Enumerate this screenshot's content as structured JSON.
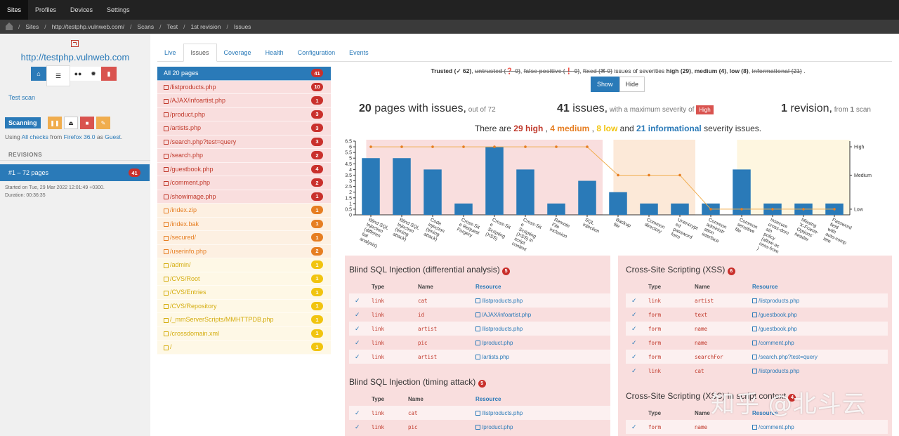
{
  "nav": [
    "Sites",
    "Profiles",
    "Devices",
    "Settings"
  ],
  "crumbs": [
    "Sites",
    "http://testphp.vulnweb.com/",
    "Scans",
    "Test",
    "1st revision",
    "Issues"
  ],
  "site": {
    "url": "http://testphp.vulnweb.com",
    "test_scan": "Test scan",
    "scanning": "Scanning",
    "using_prefix": "Using ",
    "checks": "All checks",
    "from": " from ",
    "browser": "Firefox 36.0",
    "as": " as ",
    "user": "Guest",
    "dot": "."
  },
  "revisions": {
    "heading": "REVISIONS",
    "item": "#1 – 72 pages",
    "count": "41",
    "started": "Started on Tue, 29 Mar 2022 12:01:49 +0300.",
    "duration": "Duration: 00:36:35"
  },
  "tabs": [
    "Live",
    "Issues",
    "Coverage",
    "Health",
    "Configuration",
    "Events"
  ],
  "pages": [
    {
      "label": "All 20 pages",
      "count": "41",
      "sev": "all"
    },
    {
      "label": "/listproducts.php",
      "count": "10",
      "sev": "high"
    },
    {
      "label": "/AJAX/infoartist.php",
      "count": "1",
      "sev": "high"
    },
    {
      "label": "/product.php",
      "count": "3",
      "sev": "high"
    },
    {
      "label": "/artists.php",
      "count": "3",
      "sev": "high"
    },
    {
      "label": "/search.php?test=query",
      "count": "3",
      "sev": "high"
    },
    {
      "label": "/search.php",
      "count": "2",
      "sev": "high"
    },
    {
      "label": "/guestbook.php",
      "count": "4",
      "sev": "high"
    },
    {
      "label": "/comment.php",
      "count": "2",
      "sev": "high"
    },
    {
      "label": "/showimage.php",
      "count": "1",
      "sev": "high"
    },
    {
      "label": "/index.zip",
      "count": "1",
      "sev": "med"
    },
    {
      "label": "/index.bak",
      "count": "1",
      "sev": "med"
    },
    {
      "label": "/secured/",
      "count": "1",
      "sev": "med"
    },
    {
      "label": "/userinfo.php",
      "count": "2",
      "sev": "med"
    },
    {
      "label": "/admin/",
      "count": "1",
      "sev": "low"
    },
    {
      "label": "/CVS/Root",
      "count": "1",
      "sev": "low"
    },
    {
      "label": "/CVS/Entries",
      "count": "1",
      "sev": "low"
    },
    {
      "label": "/CVS/Repository",
      "count": "1",
      "sev": "low"
    },
    {
      "label": "/_mmServerScripts/MMHTTPDB.php",
      "count": "1",
      "sev": "low"
    },
    {
      "label": "/crossdomain.xml",
      "count": "1",
      "sev": "low"
    },
    {
      "label": "/",
      "count": "1",
      "sev": "low"
    }
  ],
  "filter": {
    "trusted": "Trusted (",
    "trusted_n": " 62)",
    "untrusted": "untrusted (",
    "untrusted_n": " 0)",
    "fp": "false positive (",
    "fp_n": " 0)",
    "fixed": "fixed (",
    "fixed_n": " 0)",
    "mid": " issues of severities ",
    "high": "high (29)",
    "medium": "medium (4)",
    "low": "low (8)",
    "info": "informational (21)",
    "show": "Show",
    "hide": "Hide"
  },
  "stats": {
    "pages": "20",
    "pages_label": " pages with issues,",
    "pages_sub": " out of 72",
    "issues": "41",
    "issues_label": " issues,",
    "issues_sub": " with a maximum severity of ",
    "max": "High",
    "rev": "1",
    "rev_label": " revision,",
    "rev_sub": " from ",
    "scans": "1",
    "scan_word": " scan"
  },
  "severity_line": {
    "pre": "There are ",
    "high": "29 high",
    "medium": "4 medium",
    "low": "8 low",
    "and": " and ",
    "info": "21 informational",
    "post": " severity issues."
  },
  "chart_data": {
    "type": "bar",
    "categories": [
      "Blind SQL Injection (differential analysis)",
      "Blind SQL Injection (timing attack)",
      "Code injection (timing attack)",
      "Cross-Site Request Forgery",
      "Cross-Site Scripting (XSS)",
      "Cross-Site Scripting (XSS) in script context",
      "Remote File Inclusion",
      "SQL Injection",
      "Backup file",
      "Common directory",
      "Unencrypted password form",
      "Common administration interface",
      "Common sensitive file",
      "Insecure cross-domain policy (allow-access-from)",
      "Missing 'X-Frame-Options' header",
      "Password field with auto-complete"
    ],
    "tick_labels": [
      [
        "Blind SQL",
        "Injection",
        "(differen",
        "tial",
        "analysis)"
      ],
      [
        "Blind SQL",
        "Injection",
        "(timing",
        "attack)"
      ],
      [
        "Code",
        "injection",
        "(timing",
        "attack)"
      ],
      [
        "Cross-Sit",
        "e Request",
        "Forgery"
      ],
      [
        "Cross-Sit",
        "e",
        "Scripting",
        "(XSS)"
      ],
      [
        "Cross-Sit",
        "e",
        "Scripting",
        "(XSS) in",
        "script",
        "context"
      ],
      [
        "Remote",
        "File",
        "Inclusion"
      ],
      [
        "SQL",
        "Injection"
      ],
      [
        "Backup",
        "file"
      ],
      [
        "Common",
        "directory"
      ],
      [
        "Unencrypt",
        "ed",
        "password",
        "form"
      ],
      [
        "Common",
        "administr",
        "ation",
        "interface"
      ],
      [
        "Common",
        "sensitive",
        "file"
      ],
      [
        "Insecure",
        "cross-dom",
        "ain",
        "policy",
        "(allow-ac",
        "cess-from",
        ")"
      ],
      [
        "Missing",
        "'X-Frame-",
        "Options'",
        "header"
      ],
      [
        "Password",
        "field",
        "with",
        "auto-comp",
        "lete"
      ]
    ],
    "values": [
      5,
      5,
      4,
      1,
      6,
      4,
      1,
      3,
      2,
      1,
      1,
      1,
      4,
      1,
      1,
      1
    ],
    "severity": [
      "High",
      "High",
      "High",
      "High",
      "High",
      "High",
      "High",
      "High",
      "Medium",
      "Medium",
      "Medium",
      "Low",
      "Low",
      "Low",
      "Low",
      "Low"
    ],
    "ylim": [
      0,
      6.5
    ],
    "yticks": [
      "0",
      "0.5",
      "1",
      "1.5",
      "2",
      "2.5",
      "3",
      "3.5",
      "4",
      "4.5",
      "5",
      "5.5",
      "6",
      "6.5"
    ],
    "y2labels": [
      "High",
      "Medium",
      "Low"
    ],
    "colors": {
      "bar": "#2a7ab8",
      "line": "#f0ad4e",
      "high": "#f9dede",
      "medium": "#fce9d8",
      "low": "#fef6e0"
    }
  },
  "panels": [
    {
      "title": "Blind SQL Injection (differential analysis)",
      "count": "5",
      "headers": [
        "Type",
        "Name",
        "Resource"
      ],
      "rows": [
        [
          "link",
          "cat",
          "/listproducts.php"
        ],
        [
          "link",
          "id",
          "/AJAX/infoartist.php"
        ],
        [
          "link",
          "artist",
          "/listproducts.php"
        ],
        [
          "link",
          "pic",
          "/product.php"
        ],
        [
          "link",
          "artist",
          "/artists.php"
        ]
      ]
    },
    {
      "title": "Blind SQL Injection (timing attack)",
      "count": "5",
      "headers": [
        "Type",
        "Name",
        "Resource"
      ],
      "rows": [
        [
          "link",
          "cat",
          "/listproducts.php"
        ],
        [
          "link",
          "pic",
          "/product.php"
        ]
      ]
    },
    {
      "title": "Cross-Site Scripting (XSS)",
      "count": "6",
      "headers": [
        "Type",
        "Name",
        "Resource"
      ],
      "rows": [
        [
          "link",
          "artist",
          "/listproducts.php"
        ],
        [
          "form",
          "text",
          "/guestbook.php"
        ],
        [
          "form",
          "name",
          "/guestbook.php"
        ],
        [
          "form",
          "name",
          "/comment.php"
        ],
        [
          "form",
          "searchFor",
          "/search.php?test=query"
        ],
        [
          "link",
          "cat",
          "/listproducts.php"
        ]
      ]
    },
    {
      "title": "Cross-Site Scripting (XSS) in script context",
      "count": "4",
      "headers": [
        "Type",
        "Name",
        "Resource"
      ],
      "rows": [
        [
          "form",
          "name",
          "/comment.php"
        ]
      ]
    }
  ],
  "watermark": "知乎 @北斗云"
}
